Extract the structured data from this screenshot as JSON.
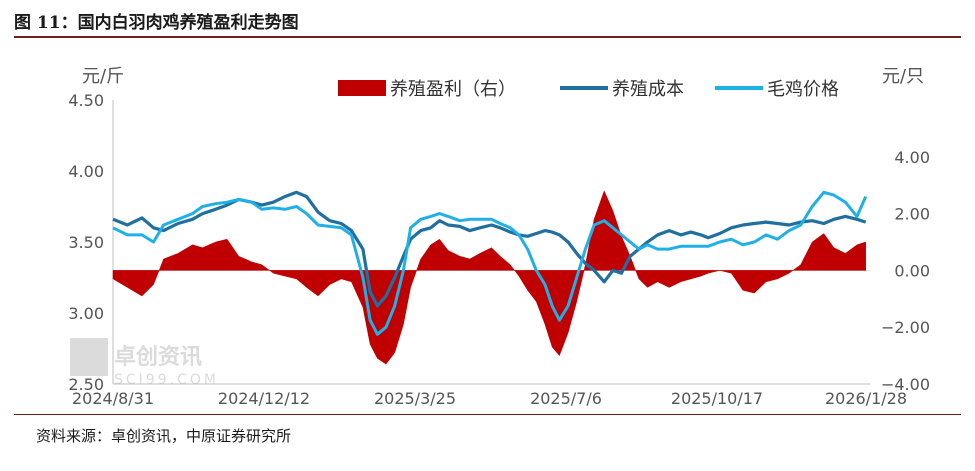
{
  "figure_title": "图 11：国内白羽肉鸡养殖盈利走势图",
  "source_note": "资料来源：卓创资讯，中原证券研究所",
  "watermark": {
    "brand": "卓创资讯",
    "site": "SCI99.COM"
  },
  "colors": {
    "profit": "#c00000",
    "cost": "#1f6fa0",
    "price": "#1fb0e8"
  },
  "chart_data": {
    "type": "line",
    "left_axis": {
      "unit": "元/斤",
      "range": [
        2.5,
        4.5
      ],
      "ticks": [
        "2.50",
        "3.00",
        "3.50",
        "4.00",
        "4.50"
      ]
    },
    "right_axis": {
      "unit": "元/只",
      "range": [
        -4.0,
        6.0
      ],
      "ticks": [
        "-4.00",
        "-2.00",
        "0.00",
        "2.00",
        "4.00"
      ]
    },
    "x_ticks": [
      "2024/8/31",
      "2024/12/12",
      "2025/3/25",
      "2025/7/6",
      "2025/10/17",
      "2026/1/28"
    ],
    "x_range": [
      "2024-08-31",
      "2026-02-06"
    ],
    "legend_position": "top",
    "grid": false,
    "series": [
      {
        "name": "养殖盈利（右）",
        "type": "area",
        "axis": "right",
        "points": [
          [
            "2024-08-31",
            -0.3
          ],
          [
            "2024-09-10",
            -0.6
          ],
          [
            "2024-09-20",
            -0.9
          ],
          [
            "2024-09-28",
            -0.5
          ],
          [
            "2024-10-05",
            0.4
          ],
          [
            "2024-10-15",
            0.6
          ],
          [
            "2024-10-25",
            0.9
          ],
          [
            "2024-11-01",
            0.8
          ],
          [
            "2024-11-10",
            1.0
          ],
          [
            "2024-11-18",
            1.1
          ],
          [
            "2024-11-26",
            0.5
          ],
          [
            "2024-12-05",
            0.3
          ],
          [
            "2024-12-12",
            0.2
          ],
          [
            "2024-12-20",
            -0.1
          ],
          [
            "2024-12-28",
            -0.2
          ],
          [
            "2025-01-05",
            -0.3
          ],
          [
            "2025-01-12",
            -0.6
          ],
          [
            "2025-01-20",
            -0.9
          ],
          [
            "2025-01-28",
            -0.5
          ],
          [
            "2025-02-05",
            -0.3
          ],
          [
            "2025-02-12",
            -0.4
          ],
          [
            "2025-02-20",
            -1.3
          ],
          [
            "2025-02-25",
            -2.6
          ],
          [
            "2025-03-02",
            -3.1
          ],
          [
            "2025-03-08",
            -3.3
          ],
          [
            "2025-03-14",
            -2.9
          ],
          [
            "2025-03-20",
            -1.9
          ],
          [
            "2025-03-25",
            -0.6
          ],
          [
            "2025-04-01",
            0.4
          ],
          [
            "2025-04-08",
            0.9
          ],
          [
            "2025-04-14",
            1.1
          ],
          [
            "2025-04-20",
            0.7
          ],
          [
            "2025-04-28",
            0.5
          ],
          [
            "2025-05-05",
            0.4
          ],
          [
            "2025-05-12",
            0.6
          ],
          [
            "2025-05-20",
            0.8
          ],
          [
            "2025-05-26",
            0.5
          ],
          [
            "2025-06-02",
            0.2
          ],
          [
            "2025-06-08",
            -0.2
          ],
          [
            "2025-06-14",
            -0.7
          ],
          [
            "2025-06-20",
            -1.1
          ],
          [
            "2025-06-26",
            -1.9
          ],
          [
            "2025-07-01",
            -2.7
          ],
          [
            "2025-07-06",
            -3.0
          ],
          [
            "2025-07-12",
            -2.2
          ],
          [
            "2025-07-18",
            -1.1
          ],
          [
            "2025-07-24",
            0.2
          ],
          [
            "2025-07-30",
            1.8
          ],
          [
            "2025-08-06",
            2.8
          ],
          [
            "2025-08-12",
            2.1
          ],
          [
            "2025-08-18",
            1.2
          ],
          [
            "2025-08-24",
            0.5
          ],
          [
            "2025-08-30",
            -0.3
          ],
          [
            "2025-09-05",
            -0.6
          ],
          [
            "2025-09-12",
            -0.4
          ],
          [
            "2025-09-20",
            -0.6
          ],
          [
            "2025-09-28",
            -0.4
          ],
          [
            "2025-10-05",
            -0.3
          ],
          [
            "2025-10-12",
            -0.2
          ],
          [
            "2025-10-17",
            -0.1
          ],
          [
            "2025-10-25",
            0.0
          ],
          [
            "2025-11-02",
            -0.1
          ],
          [
            "2025-11-10",
            -0.7
          ],
          [
            "2025-11-18",
            -0.8
          ],
          [
            "2025-11-26",
            -0.4
          ],
          [
            "2025-12-04",
            -0.3
          ],
          [
            "2025-12-12",
            -0.1
          ],
          [
            "2025-12-20",
            0.2
          ],
          [
            "2025-12-28",
            1.0
          ],
          [
            "2026-01-05",
            1.3
          ],
          [
            "2026-01-12",
            0.8
          ],
          [
            "2026-01-20",
            0.6
          ],
          [
            "2026-01-28",
            0.9
          ],
          [
            "2026-02-03",
            1.0
          ]
        ]
      },
      {
        "name": "养殖成本",
        "type": "line",
        "axis": "left",
        "points": [
          [
            "2024-08-31",
            3.66
          ],
          [
            "2024-09-10",
            3.62
          ],
          [
            "2024-09-20",
            3.67
          ],
          [
            "2024-09-28",
            3.6
          ],
          [
            "2024-10-05",
            3.58
          ],
          [
            "2024-10-15",
            3.63
          ],
          [
            "2024-10-25",
            3.66
          ],
          [
            "2024-11-01",
            3.7
          ],
          [
            "2024-11-10",
            3.73
          ],
          [
            "2024-11-18",
            3.76
          ],
          [
            "2024-11-26",
            3.8
          ],
          [
            "2024-12-05",
            3.78
          ],
          [
            "2024-12-12",
            3.76
          ],
          [
            "2024-12-20",
            3.78
          ],
          [
            "2024-12-28",
            3.82
          ],
          [
            "2025-01-05",
            3.85
          ],
          [
            "2025-01-12",
            3.82
          ],
          [
            "2025-01-20",
            3.71
          ],
          [
            "2025-01-28",
            3.65
          ],
          [
            "2025-02-05",
            3.63
          ],
          [
            "2025-02-12",
            3.58
          ],
          [
            "2025-02-20",
            3.45
          ],
          [
            "2025-02-25",
            3.15
          ],
          [
            "2025-03-02",
            3.05
          ],
          [
            "2025-03-08",
            3.12
          ],
          [
            "2025-03-14",
            3.25
          ],
          [
            "2025-03-20",
            3.4
          ],
          [
            "2025-03-25",
            3.52
          ],
          [
            "2025-04-01",
            3.58
          ],
          [
            "2025-04-08",
            3.6
          ],
          [
            "2025-04-14",
            3.65
          ],
          [
            "2025-04-20",
            3.62
          ],
          [
            "2025-04-28",
            3.61
          ],
          [
            "2025-05-05",
            3.58
          ],
          [
            "2025-05-12",
            3.6
          ],
          [
            "2025-05-20",
            3.62
          ],
          [
            "2025-05-26",
            3.6
          ],
          [
            "2025-06-02",
            3.57
          ],
          [
            "2025-06-08",
            3.55
          ],
          [
            "2025-06-14",
            3.54
          ],
          [
            "2025-06-20",
            3.56
          ],
          [
            "2025-06-26",
            3.58
          ],
          [
            "2025-07-01",
            3.57
          ],
          [
            "2025-07-06",
            3.55
          ],
          [
            "2025-07-12",
            3.5
          ],
          [
            "2025-07-18",
            3.42
          ],
          [
            "2025-07-24",
            3.35
          ],
          [
            "2025-07-30",
            3.3
          ],
          [
            "2025-08-06",
            3.22
          ],
          [
            "2025-08-12",
            3.3
          ],
          [
            "2025-08-18",
            3.28
          ],
          [
            "2025-08-24",
            3.4
          ],
          [
            "2025-08-30",
            3.45
          ],
          [
            "2025-09-05",
            3.5
          ],
          [
            "2025-09-12",
            3.55
          ],
          [
            "2025-09-20",
            3.58
          ],
          [
            "2025-09-28",
            3.55
          ],
          [
            "2025-10-05",
            3.57
          ],
          [
            "2025-10-12",
            3.55
          ],
          [
            "2025-10-17",
            3.53
          ],
          [
            "2025-10-25",
            3.56
          ],
          [
            "2025-11-02",
            3.6
          ],
          [
            "2025-11-10",
            3.62
          ],
          [
            "2025-11-18",
            3.63
          ],
          [
            "2025-11-26",
            3.64
          ],
          [
            "2025-12-04",
            3.63
          ],
          [
            "2025-12-12",
            3.62
          ],
          [
            "2025-12-20",
            3.64
          ],
          [
            "2025-12-28",
            3.65
          ],
          [
            "2026-01-05",
            3.63
          ],
          [
            "2026-01-12",
            3.66
          ],
          [
            "2026-01-20",
            3.68
          ],
          [
            "2026-01-28",
            3.66
          ],
          [
            "2026-02-03",
            3.64
          ]
        ]
      },
      {
        "name": "毛鸡价格",
        "type": "line",
        "axis": "left",
        "points": [
          [
            "2024-08-31",
            3.6
          ],
          [
            "2024-09-10",
            3.55
          ],
          [
            "2024-09-20",
            3.55
          ],
          [
            "2024-09-28",
            3.5
          ],
          [
            "2024-10-05",
            3.62
          ],
          [
            "2024-10-15",
            3.66
          ],
          [
            "2024-10-25",
            3.7
          ],
          [
            "2024-11-01",
            3.75
          ],
          [
            "2024-11-10",
            3.77
          ],
          [
            "2024-11-18",
            3.78
          ],
          [
            "2024-11-26",
            3.8
          ],
          [
            "2024-12-05",
            3.78
          ],
          [
            "2024-12-12",
            3.73
          ],
          [
            "2024-12-20",
            3.74
          ],
          [
            "2024-12-28",
            3.73
          ],
          [
            "2025-01-05",
            3.75
          ],
          [
            "2025-01-12",
            3.7
          ],
          [
            "2025-01-20",
            3.62
          ],
          [
            "2025-01-28",
            3.61
          ],
          [
            "2025-02-05",
            3.6
          ],
          [
            "2025-02-12",
            3.55
          ],
          [
            "2025-02-20",
            3.25
          ],
          [
            "2025-02-25",
            2.95
          ],
          [
            "2025-03-02",
            2.85
          ],
          [
            "2025-03-08",
            2.9
          ],
          [
            "2025-03-14",
            3.05
          ],
          [
            "2025-03-20",
            3.3
          ],
          [
            "2025-03-25",
            3.6
          ],
          [
            "2025-04-01",
            3.66
          ],
          [
            "2025-04-08",
            3.68
          ],
          [
            "2025-04-14",
            3.7
          ],
          [
            "2025-04-20",
            3.68
          ],
          [
            "2025-04-28",
            3.65
          ],
          [
            "2025-05-05",
            3.66
          ],
          [
            "2025-05-12",
            3.66
          ],
          [
            "2025-05-20",
            3.66
          ],
          [
            "2025-05-26",
            3.63
          ],
          [
            "2025-06-02",
            3.6
          ],
          [
            "2025-06-08",
            3.55
          ],
          [
            "2025-06-14",
            3.45
          ],
          [
            "2025-06-20",
            3.3
          ],
          [
            "2025-06-26",
            3.2
          ],
          [
            "2025-07-01",
            3.05
          ],
          [
            "2025-07-06",
            2.95
          ],
          [
            "2025-07-12",
            3.05
          ],
          [
            "2025-07-18",
            3.25
          ],
          [
            "2025-07-24",
            3.45
          ],
          [
            "2025-07-30",
            3.62
          ],
          [
            "2025-08-06",
            3.65
          ],
          [
            "2025-08-12",
            3.6
          ],
          [
            "2025-08-18",
            3.55
          ],
          [
            "2025-08-24",
            3.5
          ],
          [
            "2025-08-30",
            3.45
          ],
          [
            "2025-09-05",
            3.48
          ],
          [
            "2025-09-12",
            3.45
          ],
          [
            "2025-09-20",
            3.45
          ],
          [
            "2025-09-28",
            3.47
          ],
          [
            "2025-10-05",
            3.47
          ],
          [
            "2025-10-12",
            3.47
          ],
          [
            "2025-10-17",
            3.47
          ],
          [
            "2025-10-25",
            3.5
          ],
          [
            "2025-11-02",
            3.52
          ],
          [
            "2025-11-10",
            3.48
          ],
          [
            "2025-11-18",
            3.5
          ],
          [
            "2025-11-26",
            3.55
          ],
          [
            "2025-12-04",
            3.52
          ],
          [
            "2025-12-12",
            3.58
          ],
          [
            "2025-12-20",
            3.62
          ],
          [
            "2025-12-28",
            3.75
          ],
          [
            "2026-01-05",
            3.85
          ],
          [
            "2026-01-12",
            3.83
          ],
          [
            "2026-01-20",
            3.78
          ],
          [
            "2026-01-28",
            3.68
          ],
          [
            "2026-02-03",
            3.82
          ]
        ]
      }
    ]
  }
}
